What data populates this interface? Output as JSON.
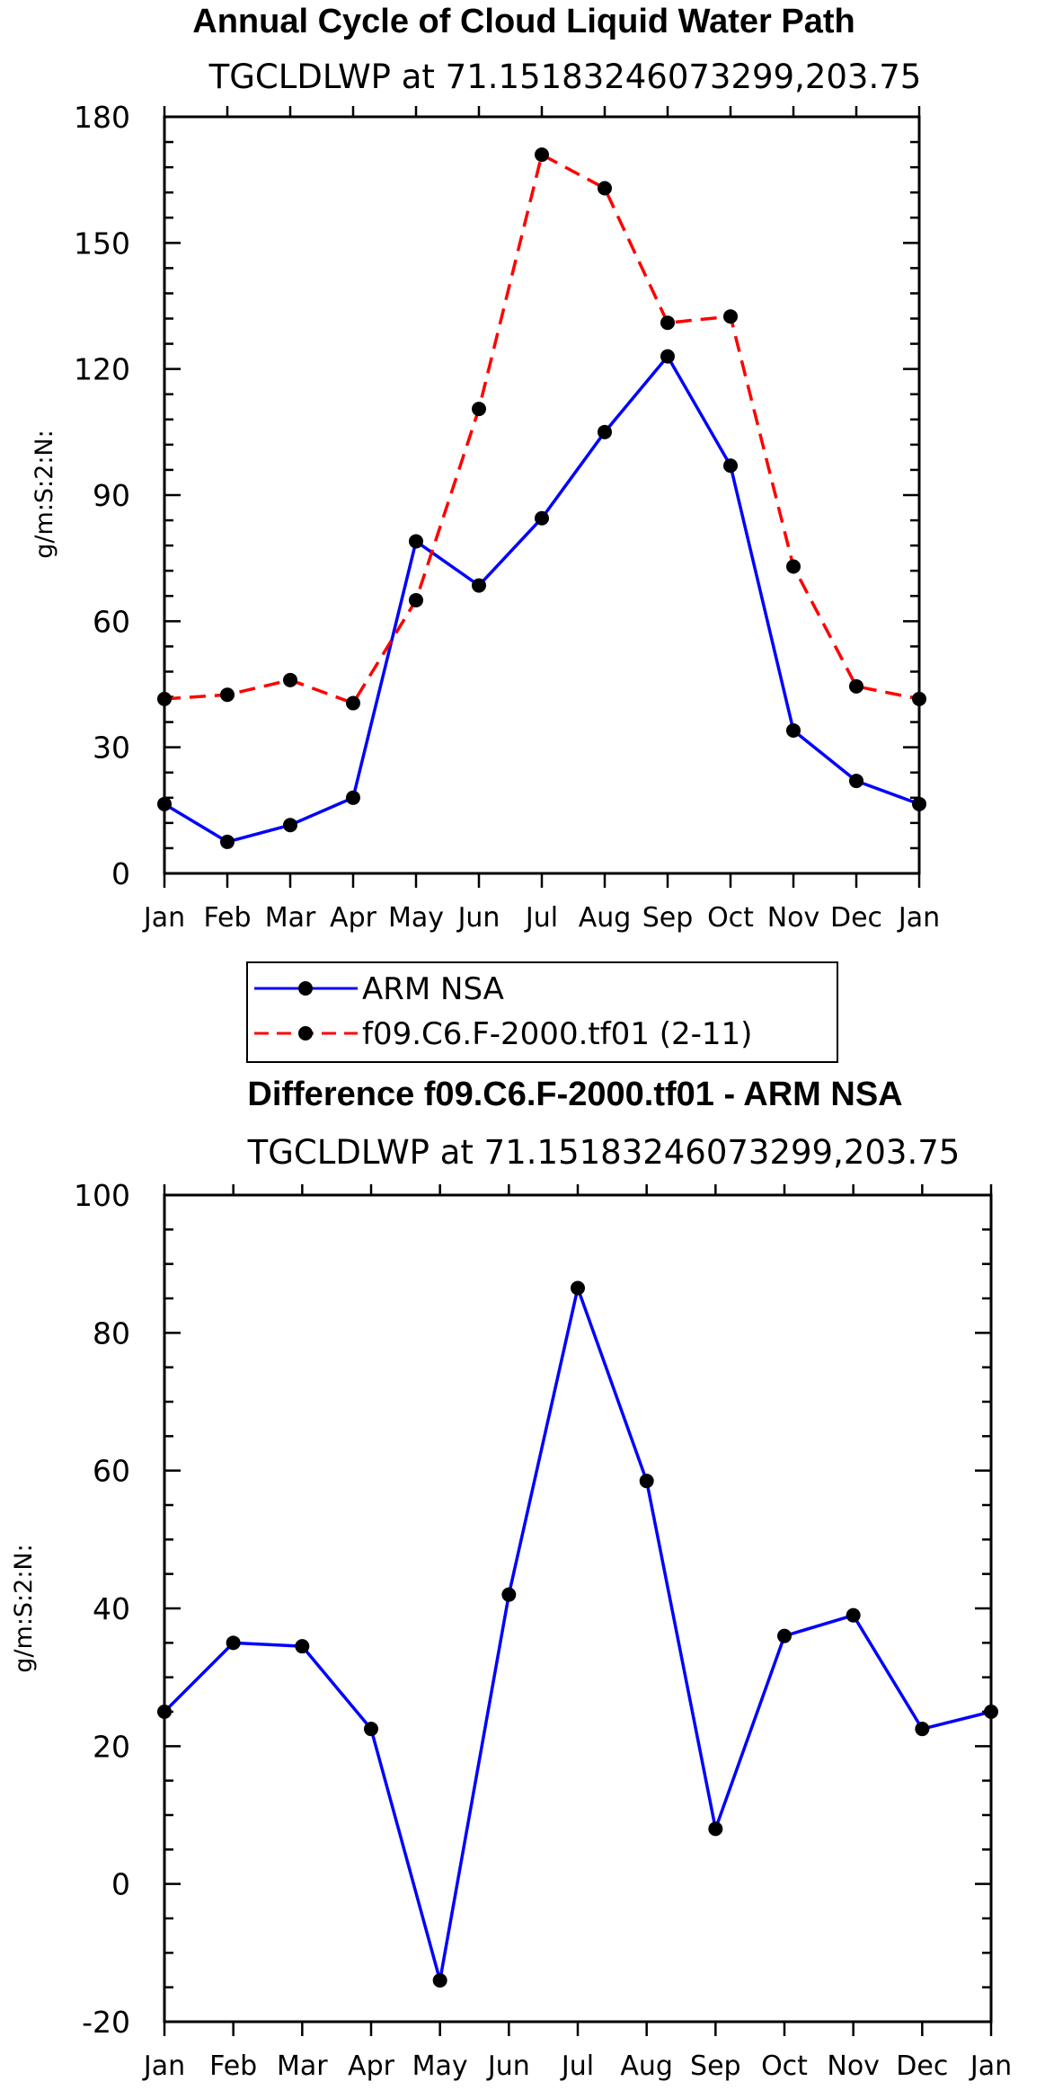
{
  "chart_data": [
    {
      "type": "line",
      "title": "Annual Cycle of Cloud Liquid Water Path",
      "subtitle": "TGCLDLWP at 71.15183246073299,203.75",
      "xlabel": "",
      "ylabel": "g/m:S:2:N:",
      "ylim": [
        0,
        180
      ],
      "yticks": [
        0,
        30,
        60,
        90,
        120,
        150,
        180
      ],
      "categories": [
        "Jan",
        "Feb",
        "Mar",
        "Apr",
        "May",
        "Jun",
        "Jul",
        "Aug",
        "Sep",
        "Oct",
        "Nov",
        "Dec",
        "Jan"
      ],
      "series": [
        {
          "name": "ARM NSA",
          "color": "#0000ff",
          "style": "solid",
          "values": [
            16.5,
            7.5,
            11.5,
            18,
            79,
            68.5,
            84.5,
            105,
            123,
            97,
            34,
            22,
            16.5
          ]
        },
        {
          "name": "f09.C6.F-2000.tf01 (2-11)",
          "color": "#ff0000",
          "style": "dashed",
          "values": [
            41.5,
            42.5,
            46,
            40.5,
            65,
            110.5,
            171,
            163,
            131,
            132.5,
            73,
            44.5,
            41.5
          ]
        }
      ],
      "legend": "bottom-center"
    },
    {
      "type": "line",
      "title": "Difference f09.C6.F-2000.tf01 - ARM NSA",
      "subtitle": "TGCLDLWP at 71.15183246073299,203.75",
      "xlabel": "",
      "ylabel": "g/m:S:2:N:",
      "ylim": [
        -20,
        100
      ],
      "yticks": [
        -20,
        0,
        20,
        40,
        60,
        80,
        100
      ],
      "categories": [
        "Jan",
        "Feb",
        "Mar",
        "Apr",
        "May",
        "Jun",
        "Jul",
        "Aug",
        "Sep",
        "Oct",
        "Nov",
        "Dec",
        "Jan"
      ],
      "series": [
        {
          "name": "Difference",
          "color": "#0000ff",
          "style": "solid",
          "values": [
            25,
            35,
            34.5,
            22.5,
            -14,
            42,
            86.5,
            58.5,
            8,
            36,
            39,
            22.5,
            25
          ]
        }
      ]
    }
  ]
}
